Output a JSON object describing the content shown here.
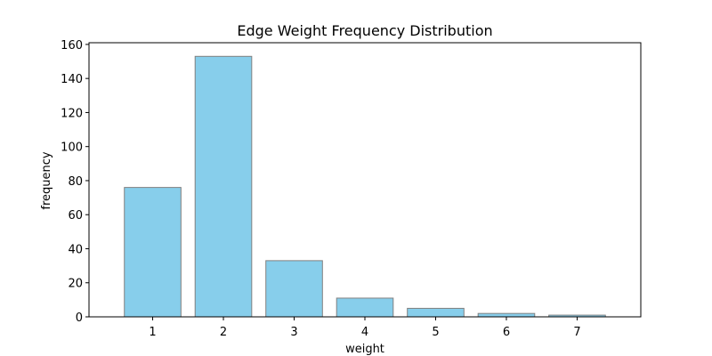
{
  "chart_data": {
    "type": "bar",
    "title": "Edge Weight Frequency Distribution",
    "xlabel": "weight",
    "ylabel": "frequency",
    "categories": [
      "1",
      "2",
      "3",
      "4",
      "5",
      "6",
      "7"
    ],
    "values": [
      76,
      153,
      33,
      11,
      5,
      2,
      1
    ],
    "ylim": [
      0,
      161
    ],
    "yticks": [
      0,
      20,
      40,
      60,
      80,
      100,
      120,
      140,
      160
    ],
    "grid": false,
    "legend": "none",
    "colors": {
      "bar_fill": "#87ceeb",
      "bar_edge": "#808080",
      "axis": "#000000"
    }
  }
}
